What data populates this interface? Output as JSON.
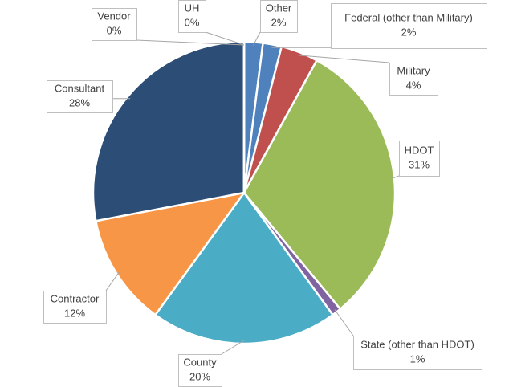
{
  "chart_data": {
    "type": "pie",
    "categories": [
      "Other",
      "Federal (other than Military)",
      "Military",
      "HDOT",
      "State (other than HDOT)",
      "County",
      "Contractor",
      "Consultant",
      "Vendor",
      "UH"
    ],
    "values": [
      2,
      2,
      4,
      31,
      1,
      20,
      12,
      28,
      0,
      0
    ],
    "value_labels": [
      "2%",
      "2%",
      "4%",
      "31%",
      "1%",
      "20%",
      "12%",
      "28%",
      "0%",
      "0%"
    ],
    "colors": [
      "#4f81bd",
      "#4f81bd",
      "#c0504d",
      "#9bbb59",
      "#8064a2",
      "#4bacc6",
      "#f79646",
      "#2c4d75",
      "#772c2a",
      "#3f3151"
    ]
  }
}
